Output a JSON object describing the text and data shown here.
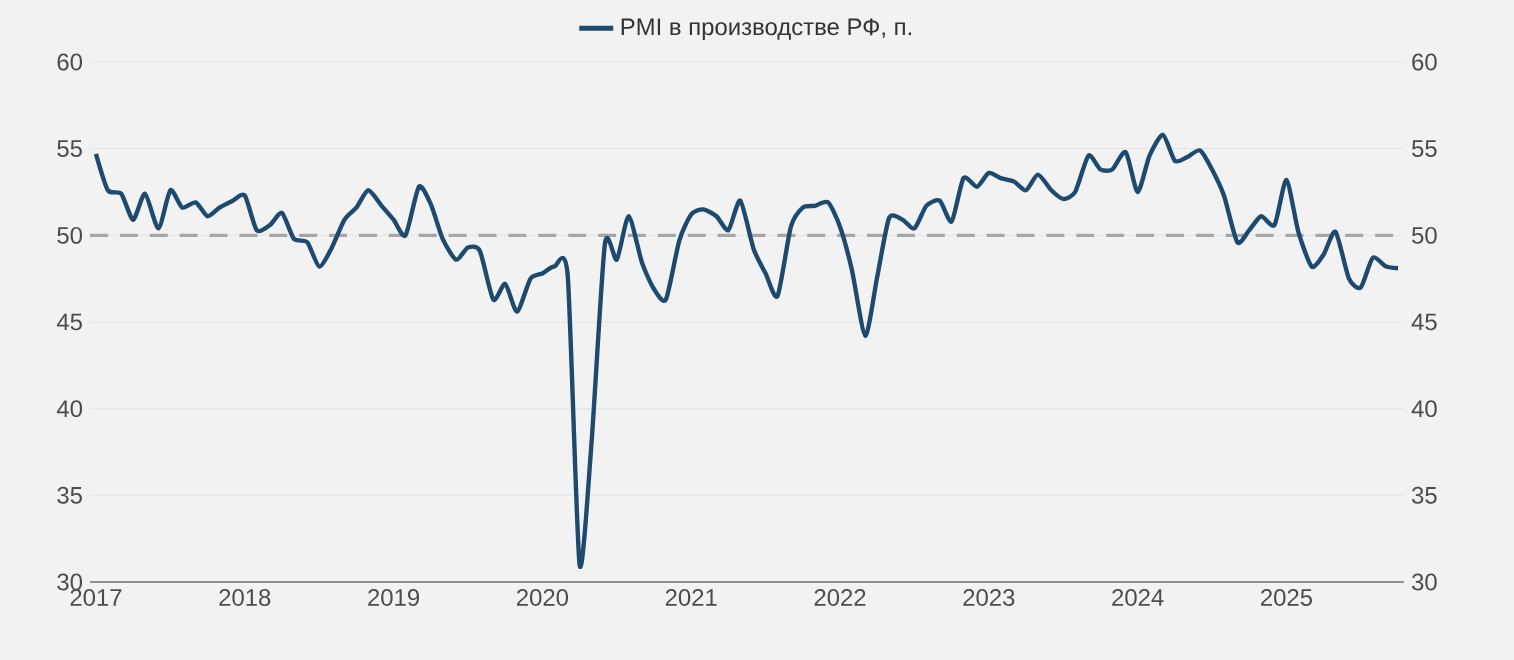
{
  "chart_data": {
    "type": "line",
    "x": [
      "2017-01",
      "2017-02",
      "2017-03",
      "2017-04",
      "2017-05",
      "2017-06",
      "2017-07",
      "2017-08",
      "2017-09",
      "2017-10",
      "2017-11",
      "2017-12",
      "2018-01",
      "2018-02",
      "2018-03",
      "2018-04",
      "2018-05",
      "2018-06",
      "2018-07",
      "2018-08",
      "2018-09",
      "2018-10",
      "2018-11",
      "2018-12",
      "2019-01",
      "2019-02",
      "2019-03",
      "2019-04",
      "2019-05",
      "2019-06",
      "2019-07",
      "2019-08",
      "2019-09",
      "2019-10",
      "2019-11",
      "2019-12",
      "2020-01",
      "2020-02",
      "2020-03",
      "2020-04",
      "2020-05",
      "2020-06",
      "2020-07",
      "2020-08",
      "2020-09",
      "2020-10",
      "2020-11",
      "2020-12",
      "2021-01",
      "2021-02",
      "2021-03",
      "2021-04",
      "2021-05",
      "2021-06",
      "2021-07",
      "2021-08",
      "2021-09",
      "2021-10",
      "2021-11",
      "2021-12",
      "2022-01",
      "2022-02",
      "2022-03",
      "2022-04",
      "2022-05",
      "2022-06",
      "2022-07",
      "2022-08",
      "2022-09",
      "2022-10",
      "2022-11",
      "2022-12",
      "2023-01",
      "2023-02",
      "2023-03",
      "2023-04",
      "2023-05",
      "2023-06",
      "2023-07",
      "2023-08",
      "2023-09",
      "2023-10",
      "2023-11",
      "2023-12",
      "2024-01",
      "2024-02",
      "2024-03",
      "2024-04",
      "2024-05",
      "2024-06",
      "2024-07",
      "2024-08",
      "2024-09",
      "2024-10",
      "2024-11",
      "2024-12",
      "2025-01",
      "2025-02",
      "2025-03",
      "2025-04",
      "2025-05",
      "2025-06",
      "2025-07",
      "2025-08",
      "2025-09",
      "2025-10"
    ],
    "series": [
      {
        "name": "PMI в производстве РФ, п.",
        "color": "#1d4a6e",
        "values": [
          54.7,
          52.6,
          52.4,
          50.9,
          52.4,
          50.4,
          52.6,
          51.6,
          51.9,
          51.1,
          51.6,
          52.0,
          52.3,
          50.3,
          50.6,
          51.3,
          49.8,
          49.6,
          48.2,
          49.2,
          50.9,
          51.6,
          52.6,
          51.7,
          50.9,
          50.0,
          52.8,
          51.8,
          49.8,
          48.6,
          49.3,
          49.1,
          46.3,
          47.2,
          45.6,
          47.5,
          47.8,
          48.2,
          47.7,
          31.0,
          38.0,
          49.5,
          48.6,
          51.1,
          48.4,
          46.9,
          46.3,
          49.7,
          51.2,
          51.5,
          51.1,
          50.3,
          52.0,
          49.2,
          47.8,
          46.5,
          50.5,
          51.6,
          51.7,
          51.9,
          50.5,
          48.0,
          44.2,
          47.6,
          51.0,
          50.9,
          50.4,
          51.7,
          52.0,
          50.8,
          53.3,
          52.8,
          53.6,
          53.3,
          53.1,
          52.6,
          53.5,
          52.6,
          52.1,
          52.5,
          54.6,
          53.8,
          53.8,
          54.8,
          52.5,
          54.6,
          55.8,
          54.3,
          54.5,
          54.9,
          53.8,
          52.3,
          49.6,
          50.3,
          51.1,
          50.6,
          53.2,
          50.2,
          48.2,
          48.9,
          50.2,
          47.5,
          47.0,
          48.7,
          48.2,
          48.1
        ]
      }
    ],
    "xlim": [
      "2016-12-15",
      "2025-10-15"
    ],
    "xticks": [
      {
        "value": "2017",
        "label": "2017"
      },
      {
        "value": "2018",
        "label": "2018"
      },
      {
        "value": "2019",
        "label": "2019"
      },
      {
        "value": "2020",
        "label": "2020"
      },
      {
        "value": "2021",
        "label": "2021"
      },
      {
        "value": "2022",
        "label": "2022"
      },
      {
        "value": "2023",
        "label": "2023"
      },
      {
        "value": "2024",
        "label": "2024"
      },
      {
        "value": "2025",
        "label": "2025"
      }
    ],
    "ylim": [
      30,
      60
    ],
    "yticks": [
      30,
      35,
      40,
      45,
      50,
      55,
      60
    ],
    "y2lim": [
      30,
      60
    ],
    "y2ticks": [
      30,
      35,
      40,
      45,
      50,
      55,
      60
    ],
    "ref_lines": [
      {
        "axis": "y",
        "value": 50,
        "color": "#a6a6a6",
        "line_style": "dashed"
      }
    ],
    "grid": "y",
    "legend": "top",
    "marker": "none",
    "line_style": "solid"
  }
}
